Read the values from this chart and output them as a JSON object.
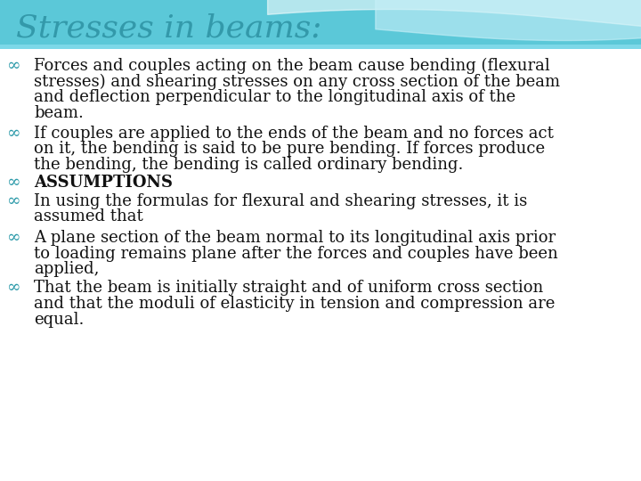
{
  "title": "Stresses in beams:",
  "title_color": "#3399AA",
  "title_fontsize": 26,
  "background_color": "#FFFFFF",
  "header_bg_color": "#5BC8D8",
  "header_wave_color1": "#A8E4EE",
  "header_wave_color2": "#C8EEF4",
  "bullet_color": "#2E9BAA",
  "text_color": "#111111",
  "bullet_fontsize": 13,
  "body_fontsize": 13,
  "bullets": [
    {
      "lines": [
        "Forces and couples acting on the beam cause bending (flexural",
        "stresses) and shearing stresses on any cross section of the beam",
        "and deflection perpendicular to the longitudinal axis of the",
        "beam."
      ],
      "bold": false
    },
    {
      "lines": [
        "If couples are applied to the ends of the beam and no forces act",
        "on it, the bending is said to be pure bending. If forces produce",
        "the bending, the bending is called ordinary bending."
      ],
      "bold": false
    },
    {
      "lines": [
        "ASSUMPTIONS"
      ],
      "bold": true
    },
    {
      "lines": [
        "In using the formulas for flexural and shearing stresses, it is",
        "assumed that"
      ],
      "bold": false
    },
    {
      "lines": [
        "A plane section of the beam normal to its longitudinal axis prior",
        "to loading remains plane after the forces and couples have been",
        "applied,"
      ],
      "bold": false
    },
    {
      "lines": [
        "That the beam is initially straight and of uniform cross section",
        "and that the moduli of elasticity in tension and compression are",
        "equal."
      ],
      "bold": false
    }
  ]
}
